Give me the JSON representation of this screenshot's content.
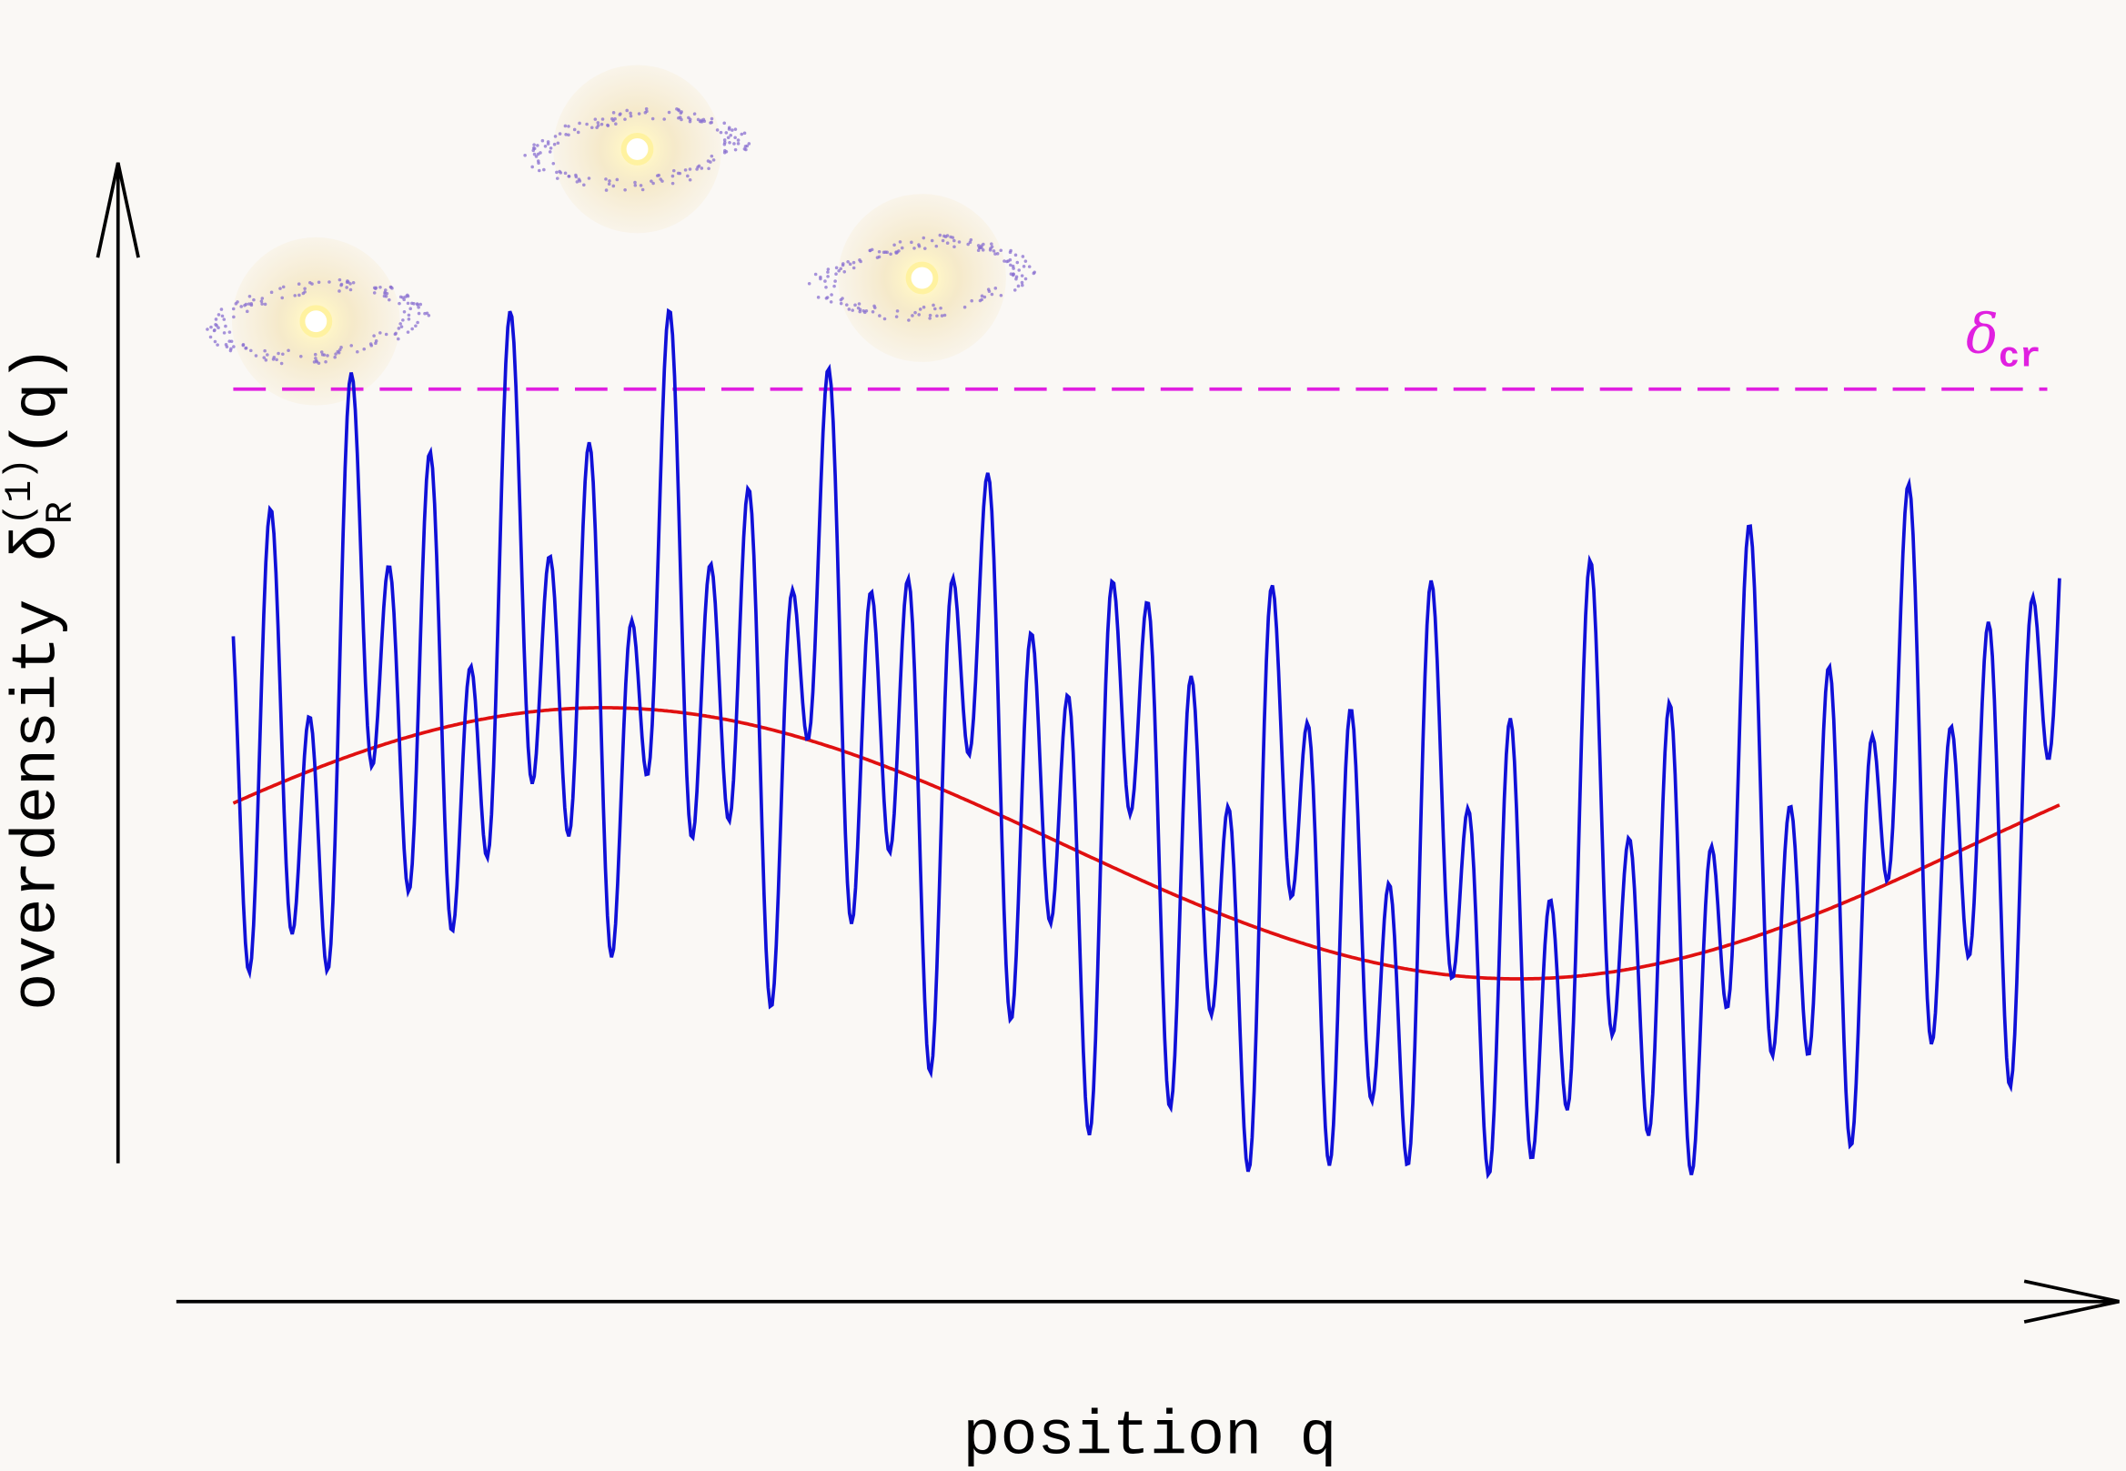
{
  "axes": {
    "y_label": {
      "text": "overdensity δ",
      "sub": "R",
      "sup": "(1)",
      "tail": "(q)"
    },
    "x_label": "position q"
  },
  "threshold": {
    "symbol": "δ",
    "subscript": "cr"
  }
}
